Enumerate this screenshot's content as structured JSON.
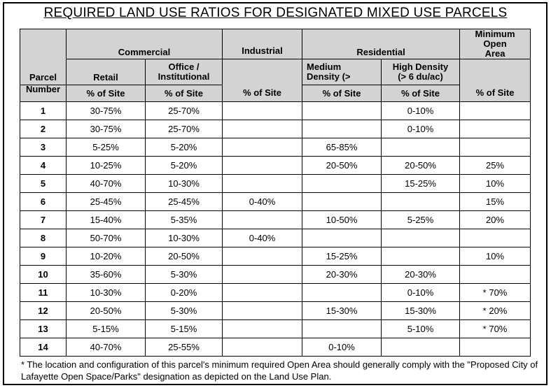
{
  "title": "REQUIRED LAND USE RATIOS FOR DESIGNATED MIXED USE PARCELS",
  "header": {
    "parcel_number": "Parcel Number",
    "commercial": "Commercial",
    "industrial": "Industrial",
    "residential": "Residential",
    "minimum_open_area": "Minimum Open Area",
    "retail": "Retail",
    "office": "Office / Institutional",
    "medium_density": "Medium Density (>",
    "high_density": "High Density (> 6 du/ac)",
    "pct_site": "% of Site"
  },
  "rows": [
    {
      "parcel": "1",
      "retail": "30-75%",
      "office": "25-70%",
      "industrial": "",
      "medium": "",
      "high": "0-10%",
      "open": ""
    },
    {
      "parcel": "2",
      "retail": "30-75%",
      "office": "25-70%",
      "industrial": "",
      "medium": "",
      "high": "0-10%",
      "open": ""
    },
    {
      "parcel": "3",
      "retail": "5-25%",
      "office": "5-20%",
      "industrial": "",
      "medium": "65-85%",
      "high": "",
      "open": ""
    },
    {
      "parcel": "4",
      "retail": "10-25%",
      "office": "5-20%",
      "industrial": "",
      "medium": "20-50%",
      "high": "20-50%",
      "open": "25%"
    },
    {
      "parcel": "5",
      "retail": "40-70%",
      "office": "10-30%",
      "industrial": "",
      "medium": "",
      "high": "15-25%",
      "open": "10%"
    },
    {
      "parcel": "6",
      "retail": "25-45%",
      "office": "25-45%",
      "industrial": "0-40%",
      "medium": "",
      "high": "",
      "open": "15%"
    },
    {
      "parcel": "7",
      "retail": "15-40%",
      "office": "5-35%",
      "industrial": "",
      "medium": "10-50%",
      "high": "5-25%",
      "open": "20%"
    },
    {
      "parcel": "8",
      "retail": "50-70%",
      "office": "10-30%",
      "industrial": "0-40%",
      "medium": "",
      "high": "",
      "open": ""
    },
    {
      "parcel": "9",
      "retail": "10-20%",
      "office": "20-50%",
      "industrial": "",
      "medium": "15-25%",
      "high": "",
      "open": "10%"
    },
    {
      "parcel": "10",
      "retail": "35-60%",
      "office": "5-30%",
      "industrial": "",
      "medium": "20-30%",
      "high": "20-30%",
      "open": ""
    },
    {
      "parcel": "11",
      "retail": "10-30%",
      "office": "0-20%",
      "industrial": "",
      "medium": "",
      "high": "0-10%",
      "open": "* 70%"
    },
    {
      "parcel": "12",
      "retail": "20-50%",
      "office": "5-30%",
      "industrial": "",
      "medium": "15-30%",
      "high": "15-30%",
      "open": "* 20%"
    },
    {
      "parcel": "13",
      "retail": "5-15%",
      "office": "5-15%",
      "industrial": "",
      "medium": "",
      "high": "5-10%",
      "open": "* 70%"
    },
    {
      "parcel": "14",
      "retail": "40-70%",
      "office": "25-55%",
      "industrial": "",
      "medium": "0-10%",
      "high": "",
      "open": ""
    }
  ],
  "footnote": "* The location and configuration of this parcel's minimum required Open Area should generally comply with the \"Proposed City of Lafayette Open Space/Parks\" designation as depicted on the Land Use Plan."
}
